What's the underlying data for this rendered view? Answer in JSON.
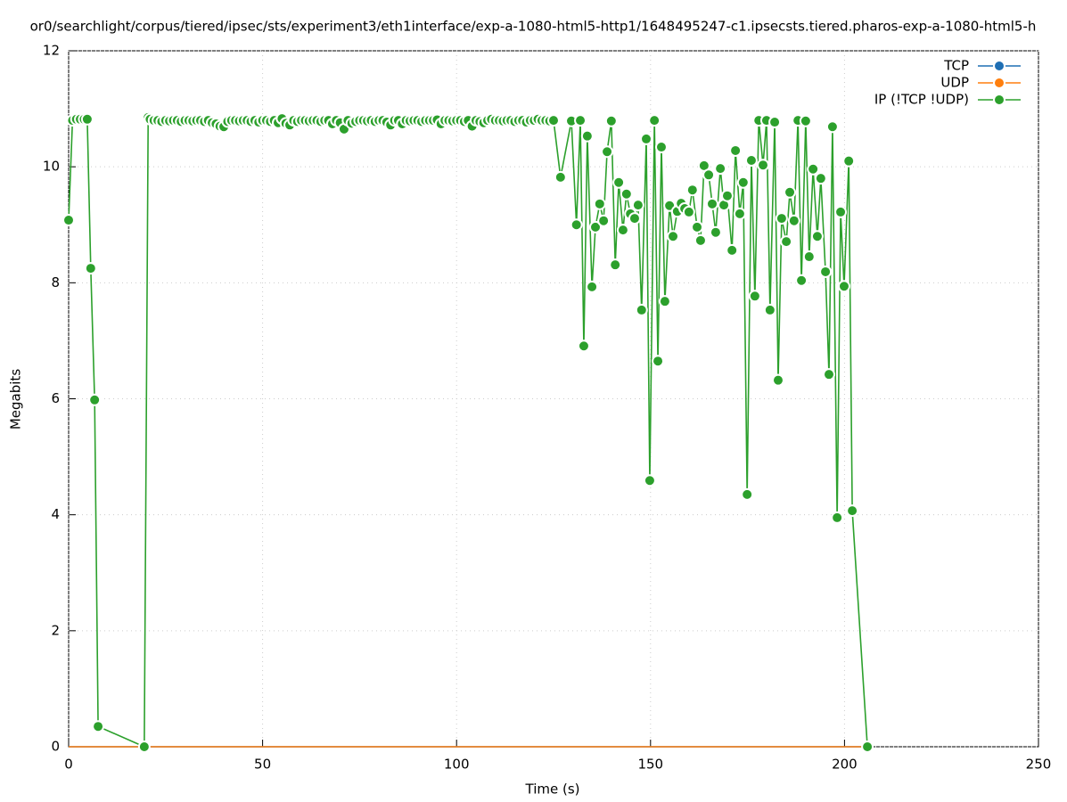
{
  "chart_data": {
    "type": "line",
    "title": "or0/searchlight/corpus/tiered/ipsec/sts/experiment3/eth1interface/exp-a-1080-html5-http1/1648495247-c1.ipsecsts.tiered.pharos-exp-a-1080-html5-h",
    "x_label": "Time (s)",
    "y_label": "Megabits",
    "xlim": [
      0,
      250
    ],
    "xticks": [
      0,
      50,
      100,
      150,
      200,
      250
    ],
    "ylim": [
      0,
      12
    ],
    "yticks": [
      0,
      2,
      4,
      6,
      8,
      10,
      12
    ],
    "grid": true,
    "legend": "top-right",
    "series": [
      {
        "name": "TCP",
        "color": "#1f6fb4",
        "x": [
          0,
          206
        ],
        "values": [
          0,
          0
        ]
      },
      {
        "name": "UDP",
        "color": "#ff7f0e",
        "x": [
          0,
          206
        ],
        "values": [
          0,
          0
        ]
      },
      {
        "name": "IP (!TCP  !UDP)",
        "color": "#2ca02c",
        "x": [
          0,
          1,
          2,
          3,
          4,
          4.8,
          5.7,
          6.7,
          7.6,
          19.5,
          20.5,
          21,
          22,
          23,
          24,
          25,
          26,
          27,
          28,
          29,
          30,
          31,
          32,
          33,
          34,
          35,
          36,
          37,
          38,
          39,
          40,
          41,
          42,
          43,
          44,
          45,
          46,
          47,
          48,
          49,
          50,
          51,
          52,
          53,
          54,
          55,
          56,
          57,
          58,
          59,
          60,
          61,
          62,
          63,
          64,
          65,
          66,
          67,
          68,
          69,
          70,
          71,
          72,
          73,
          74,
          75,
          76,
          77,
          78,
          79,
          80,
          81,
          82,
          83,
          84,
          85,
          86,
          87,
          88,
          89,
          90,
          91,
          92,
          93,
          94,
          95,
          96,
          97,
          98,
          99,
          100,
          101,
          102,
          103,
          104,
          105,
          106,
          107,
          108,
          109,
          110,
          111,
          112,
          113,
          114,
          115,
          116,
          117,
          118,
          119,
          120,
          121,
          122,
          123,
          124,
          125,
          126.8,
          129.6,
          130.9,
          131.9,
          132.8,
          133.7,
          134.9,
          135.8,
          136.9,
          137.9,
          138.8,
          139.9,
          140.9,
          141.8,
          142.9,
          143.8,
          144.8,
          145.9,
          146.8,
          147.7,
          148.9,
          149.8,
          151,
          151.9,
          152.8,
          153.7,
          154.9,
          155.8,
          156.9,
          157.9,
          158.8,
          159.9,
          160.8,
          162,
          162.9,
          163.8,
          165,
          165.9,
          166.8,
          168,
          168.9,
          169.8,
          171,
          171.9,
          173,
          173.9,
          174.9,
          176,
          176.9,
          177.9,
          179,
          179.9,
          180.8,
          182,
          182.9,
          183.8,
          185,
          185.9,
          187,
          188,
          188.9,
          190,
          190.9,
          191.9,
          193,
          193.9,
          195.1,
          196,
          196.9,
          198.1,
          199,
          199.9,
          201.1,
          202,
          205.9
        ],
        "values": [
          9.08,
          10.8,
          10.82,
          10.82,
          10.82,
          10.82,
          8.25,
          5.98,
          0.35,
          0,
          10.85,
          10.82,
          10.8,
          10.8,
          10.78,
          10.8,
          10.79,
          10.8,
          10.8,
          10.78,
          10.8,
          10.8,
          10.79,
          10.8,
          10.8,
          10.78,
          10.8,
          10.76,
          10.74,
          10.7,
          10.69,
          10.78,
          10.8,
          10.8,
          10.79,
          10.8,
          10.8,
          10.78,
          10.8,
          10.77,
          10.8,
          10.8,
          10.78,
          10.8,
          10.76,
          10.83,
          10.75,
          10.72,
          10.8,
          10.78,
          10.8,
          10.8,
          10.79,
          10.8,
          10.8,
          10.78,
          10.8,
          10.8,
          10.74,
          10.8,
          10.76,
          10.65,
          10.8,
          10.75,
          10.78,
          10.8,
          10.8,
          10.79,
          10.8,
          10.78,
          10.8,
          10.8,
          10.77,
          10.72,
          10.8,
          10.8,
          10.74,
          10.8,
          10.79,
          10.8,
          10.8,
          10.78,
          10.8,
          10.8,
          10.8,
          10.81,
          10.74,
          10.8,
          10.8,
          10.79,
          10.8,
          10.8,
          10.78,
          10.8,
          10.7,
          10.8,
          10.78,
          10.76,
          10.8,
          10.82,
          10.8,
          10.8,
          10.79,
          10.8,
          10.8,
          10.78,
          10.8,
          10.8,
          10.77,
          10.8,
          10.8,
          10.82,
          10.8,
          10.8,
          10.79,
          10.8,
          9.82,
          10.79,
          9.0,
          10.8,
          6.91,
          10.53,
          7.93,
          8.96,
          9.36,
          9.07,
          10.26,
          10.79,
          8.31,
          9.73,
          8.91,
          9.53,
          9.19,
          9.11,
          9.34,
          7.53,
          10.48,
          4.59,
          10.8,
          6.65,
          10.34,
          7.68,
          9.33,
          8.8,
          9.23,
          9.37,
          9.28,
          9.22,
          9.6,
          8.96,
          8.73,
          10.02,
          9.86,
          9.36,
          8.87,
          9.97,
          9.34,
          9.5,
          8.56,
          10.28,
          9.19,
          9.73,
          4.35,
          10.11,
          7.77,
          10.8,
          10.03,
          10.8,
          7.53,
          10.77,
          6.32,
          9.11,
          8.71,
          9.56,
          9.07,
          10.8,
          8.04,
          10.79,
          8.45,
          9.96,
          8.8,
          9.8,
          8.19,
          6.42,
          10.69,
          3.95,
          9.22,
          7.94,
          10.1,
          4.07,
          0
        ]
      }
    ]
  }
}
